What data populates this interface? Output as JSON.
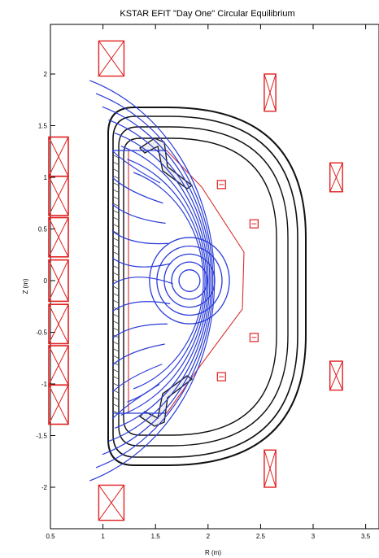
{
  "figure": {
    "title": "KSTAR EFIT \"Day One\" Circular Equilibrium",
    "xlabel": "R (m)",
    "ylabel": "Z (m)"
  },
  "axes": {
    "xlim": [
      0.5,
      3.2
    ],
    "ylim": [
      -2.1,
      2.45
    ],
    "xticks": [
      {
        "value": 0.5,
        "label": "0.5"
      },
      {
        "value": 1.0,
        "label": "1"
      },
      {
        "value": 1.5,
        "label": "1.5"
      },
      {
        "value": 2.0,
        "label": "2"
      },
      {
        "value": 2.5,
        "label": "2.5"
      },
      {
        "value": 3.0,
        "label": "3"
      },
      {
        "value": 3.5,
        "label": "3.5"
      }
    ],
    "yticks": [
      {
        "value": 2.0,
        "label": "2"
      },
      {
        "value": 1.5,
        "label": "1.5"
      },
      {
        "value": 1.0,
        "label": "1"
      },
      {
        "value": 0.5,
        "label": "0.5"
      },
      {
        "value": 0.0,
        "label": "0"
      },
      {
        "value": -0.5,
        "label": "-0.5"
      },
      {
        "value": -1.0,
        "label": "-1"
      },
      {
        "value": -1.5,
        "label": "-1.5"
      },
      {
        "value": -2.0,
        "label": "-2"
      }
    ]
  },
  "colors": {
    "coil": "#e02020",
    "flux": "#2a3cd8",
    "vessel": "#111111",
    "limiter": "#d83030"
  },
  "plasma": {
    "R0": 1.8,
    "Z0": 0.0
  },
  "vessel": {
    "outer_R_in": 1.13,
    "outer_R_out": 2.96,
    "outer_top": 1.73,
    "outer_bottom": -1.82,
    "layers": 4
  },
  "pf_coils": [
    {
      "id": "pf1",
      "R": 1.08,
      "Z": 2.15,
      "w": 0.24,
      "h": 0.34
    },
    {
      "id": "pf2",
      "R": 2.59,
      "Z": 1.82,
      "w": 0.11,
      "h": 0.36
    },
    {
      "id": "pf3",
      "R": 3.22,
      "Z": 1.0,
      "w": 0.12,
      "h": 0.28
    },
    {
      "id": "pf4",
      "R": 3.22,
      "Z": -0.92,
      "w": 0.12,
      "h": 0.28
    },
    {
      "id": "pf5",
      "R": 2.59,
      "Z": -1.82,
      "w": 0.11,
      "h": 0.36
    },
    {
      "id": "pf6",
      "R": 1.08,
      "Z": -2.15,
      "w": 0.24,
      "h": 0.34
    }
  ],
  "cs_coils": [
    {
      "Z": 1.2,
      "h": 0.38
    },
    {
      "Z": 0.82,
      "h": 0.38
    },
    {
      "Z": 0.42,
      "h": 0.38
    },
    {
      "Z": 0.0,
      "h": 0.4
    },
    {
      "Z": -0.42,
      "h": 0.38
    },
    {
      "Z": -0.82,
      "h": 0.38
    },
    {
      "Z": -1.2,
      "h": 0.38
    }
  ],
  "passive_coils": [
    {
      "R": 2.12,
      "Z": 0.93
    },
    {
      "R": 2.43,
      "Z": 0.55
    },
    {
      "R": 2.43,
      "Z": -0.55
    },
    {
      "R": 2.12,
      "Z": -0.93
    }
  ],
  "flux_surfaces": [
    {
      "a": 0.1,
      "kappa": 1.05
    },
    {
      "a": 0.17,
      "kappa": 1.06
    },
    {
      "a": 0.24,
      "kappa": 1.07
    },
    {
      "a": 0.31,
      "kappa": 1.08
    },
    {
      "a": 0.38,
      "kappa": 1.1
    }
  ]
}
